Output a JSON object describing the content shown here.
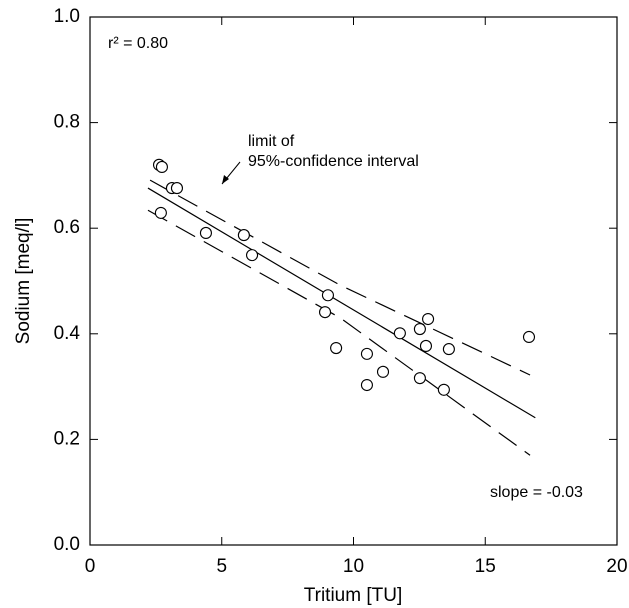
{
  "chart_data": {
    "type": "scatter",
    "x_label": "Tritium   [TU]",
    "y_label": "Sodium   [meq/l]",
    "xlim": [
      0,
      20
    ],
    "ylim": [
      0,
      1
    ],
    "xticks": [
      0,
      5,
      10,
      15,
      20
    ],
    "yticks": [
      {
        "value": 0,
        "label": "0.0"
      },
      0.2,
      0.4,
      0.6,
      0.8,
      {
        "value": 1,
        "label": "1.0"
      }
    ],
    "series": [
      {
        "x": [
          2.62,
          2.73,
          3.11,
          3.3,
          2.69,
          4.4,
          5.84,
          6.15,
          9.03,
          8.92,
          9.34,
          11.76,
          12.52,
          12.83,
          12.75,
          13.62,
          10.51,
          11.12,
          10.51,
          12.52,
          13.43,
          16.66
        ],
        "values": [
          0.72,
          0.716,
          0.676,
          0.676,
          0.629,
          0.591,
          0.587,
          0.549,
          0.473,
          0.441,
          0.373,
          0.401,
          0.409,
          0.428,
          0.377,
          0.371,
          0.362,
          0.328,
          0.303,
          0.316,
          0.294,
          0.394
        ]
      }
    ],
    "fit": {
      "x": [
        2.2,
        16.9
      ],
      "values": [
        0.676,
        0.241
      ]
    },
    "upper_band": {
      "x": [
        2.28,
        9.5,
        16.7
      ],
      "values": [
        0.691,
        0.492,
        0.322
      ]
    },
    "lower_band": {
      "x": [
        2.2,
        9.5,
        16.7
      ],
      "values": [
        0.634,
        0.43,
        0.17
      ]
    },
    "annotations": [
      "r² = 0.80",
      "limit of",
      "95%-confidence interval",
      "slope = -0.03"
    ]
  }
}
